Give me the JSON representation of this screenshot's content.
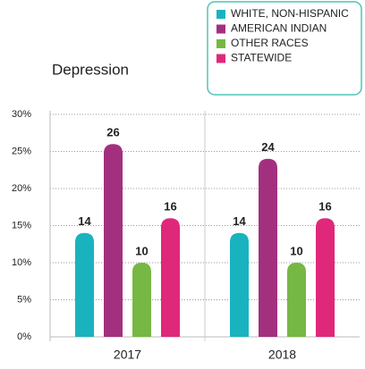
{
  "chart_data": {
    "type": "bar",
    "title": "Depression",
    "categories": [
      "2017",
      "2018"
    ],
    "series": [
      {
        "name": "WHITE, NON-HISPANIC",
        "color": "#19b3bf",
        "values": [
          14,
          14
        ]
      },
      {
        "name": "AMERICAN INDIAN",
        "color": "#a3307f",
        "values": [
          26,
          24
        ]
      },
      {
        "name": "OTHER RACES",
        "color": "#76b843",
        "values": [
          10,
          10
        ]
      },
      {
        "name": "STATEWIDE",
        "color": "#e0287a",
        "values": [
          16,
          16
        ]
      }
    ],
    "ylim": [
      0,
      30
    ],
    "yticks": [
      {
        "value": 0,
        "label": "0%"
      },
      {
        "value": 5,
        "label": "5%"
      },
      {
        "value": 10,
        "label": "10%"
      },
      {
        "value": 15,
        "label": "15%"
      },
      {
        "value": 20,
        "label": "20%"
      },
      {
        "value": 25,
        "label": "25%"
      },
      {
        "value": 30,
        "label": "30%"
      }
    ],
    "grid": true,
    "legend": "top-right"
  }
}
